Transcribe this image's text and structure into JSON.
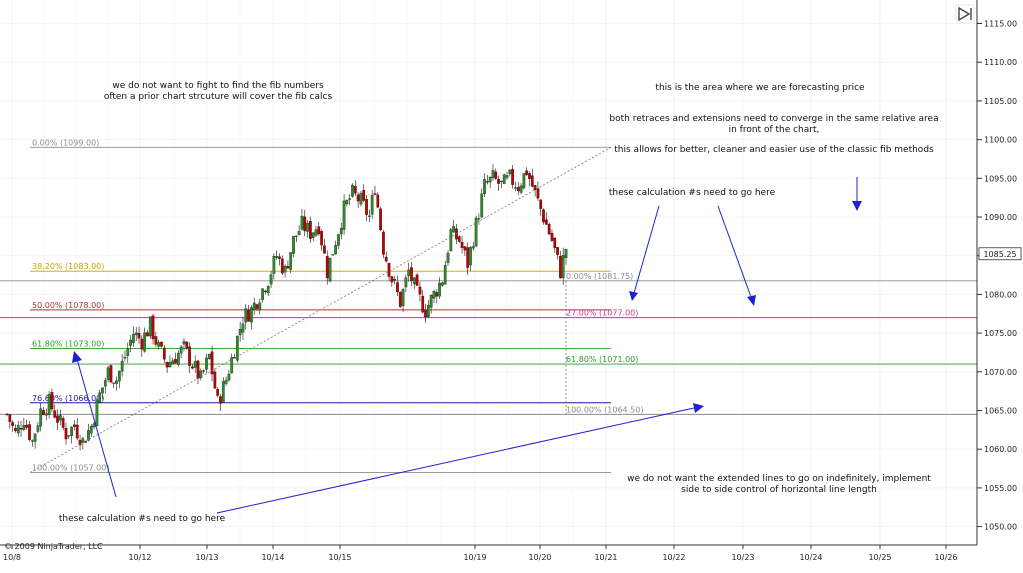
{
  "chart_data": {
    "type": "candlestick",
    "copyright": "© 2009 NinjaTrader, LLC",
    "y_axis": {
      "ylim": [
        1047,
        1118
      ],
      "ticks": [
        "1115.00",
        "1110.00",
        "1105.00",
        "1100.00",
        "1095.00",
        "1090.00",
        "1085.00",
        "1080.00",
        "1075.00",
        "1070.00",
        "1065.00",
        "1060.00",
        "1055.00",
        "1050.00"
      ],
      "last_price": "1085.25"
    },
    "x_axis": {
      "tick_labels": [
        "10/8",
        "10/12",
        "10/13",
        "10/14",
        "10/15",
        "10/19",
        "10/20",
        "10/21",
        "10/22",
        "10/23",
        "10/24",
        "10/25",
        "10/26"
      ]
    },
    "series": [
      {
        "close_path": [
          [
            0,
            1064.5
          ],
          [
            3,
            1062
          ],
          [
            6,
            1064
          ],
          [
            9,
            1061
          ],
          [
            12,
            1065
          ],
          [
            15,
            1066
          ],
          [
            18,
            1064
          ],
          [
            21,
            1062
          ],
          [
            24,
            1063
          ],
          [
            27,
            1061
          ],
          [
            30,
            1063
          ],
          [
            33,
            1067
          ],
          [
            36,
            1070
          ],
          [
            39,
            1069
          ],
          [
            42,
            1072
          ],
          [
            45,
            1075
          ],
          [
            48,
            1074
          ],
          [
            51,
            1076
          ],
          [
            54,
            1073
          ],
          [
            57,
            1071
          ],
          [
            60,
            1072
          ],
          [
            63,
            1073
          ],
          [
            66,
            1071
          ],
          [
            69,
            1069
          ],
          [
            72,
            1072
          ],
          [
            75,
            1066
          ],
          [
            78,
            1069
          ],
          [
            81,
            1073
          ],
          [
            84,
            1077
          ],
          [
            87,
            1078
          ],
          [
            90,
            1080
          ],
          [
            93,
            1082
          ],
          [
            96,
            1085
          ],
          [
            99,
            1083
          ],
          [
            102,
            1087
          ],
          [
            105,
            1089
          ],
          [
            108,
            1088
          ],
          [
            111,
            1089
          ],
          [
            114,
            1083
          ],
          [
            117,
            1087
          ],
          [
            120,
            1091
          ],
          [
            123,
            1093
          ],
          [
            126,
            1092
          ],
          [
            129,
            1090
          ],
          [
            131,
            1094
          ],
          [
            134,
            1086
          ],
          [
            137,
            1082
          ],
          [
            140,
            1079
          ],
          [
            143,
            1083
          ],
          [
            146,
            1080
          ],
          [
            149,
            1078
          ],
          [
            152,
            1080
          ],
          [
            155,
            1082
          ],
          [
            158,
            1088
          ],
          [
            161,
            1087
          ],
          [
            164,
            1084
          ],
          [
            167,
            1089
          ],
          [
            170,
            1094
          ],
          [
            173,
            1095
          ],
          [
            176,
            1094
          ],
          [
            179,
            1095
          ],
          [
            182,
            1094
          ],
          [
            185,
            1096
          ],
          [
            188,
            1093
          ],
          [
            191,
            1090
          ],
          [
            194,
            1087
          ],
          [
            197,
            1083
          ],
          [
            199,
            1086
          ]
        ]
      }
    ],
    "fib_retracement": {
      "levels": [
        {
          "label": "0.00% (1099.00)",
          "value": 1099.0,
          "color": "#8c8c8c"
        },
        {
          "label": "38.20% (1083.00)",
          "value": 1083.0,
          "color": "#c8a000"
        },
        {
          "label": "50.00% (1078.00)",
          "value": 1078.0,
          "color": "#b03030"
        },
        {
          "label": "61.80% (1073.00)",
          "value": 1073.0,
          "color": "#2a9a2a"
        },
        {
          "label": "76.60% (1066.00)",
          "value": 1066.0,
          "color": "#1a1aa0"
        },
        {
          "label": "100.00% (1057.00)",
          "value": 1057.0,
          "color": "#8c8c8c"
        }
      ]
    },
    "fib_extension": {
      "levels": [
        {
          "label": "0.00% (1081.75)",
          "value": 1081.75,
          "color": "#8c8c8c"
        },
        {
          "label": "27.00% (1077.00)",
          "value": 1077.0,
          "color": "#d0309a"
        },
        {
          "label": "61.80% (1071.00)",
          "value": 1071.0,
          "color": "#2a9a2a"
        },
        {
          "label": "100.00% (1064.50)",
          "value": 1064.5,
          "color": "#8c8c8c"
        }
      ]
    },
    "annotations": {
      "note_top_left_1": "we do not want to fight to find the fib numbers",
      "note_top_left_2": "often a prior chart strcuture will cover the fib calcs",
      "note_forecast": "this is the area where we are forecasting price",
      "note_converge_1": "both retraces and extensions need to converge in the same relative area",
      "note_converge_2": "in front of the chart,",
      "note_methods": "this allows for better, cleaner and easier use of the classic fib methods",
      "note_calc_top": "these calculation #s need to go here",
      "note_calc_bottom": "these calculation #s need to go here",
      "note_extended_1": "we do not want the extended lines to go on indefinitely, implement",
      "note_extended_2": "side to side control of horizontal line length"
    },
    "colors": {
      "up": "#2e8b2e",
      "down": "#c00000",
      "arrow": "#2020d0"
    }
  }
}
